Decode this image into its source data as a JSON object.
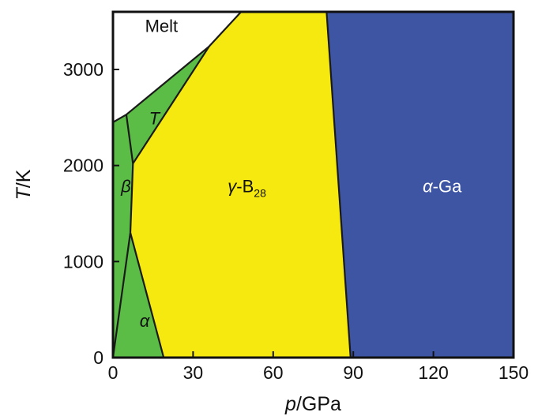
{
  "chart_data": {
    "type": "phase-diagram",
    "title": "",
    "xlabel": {
      "var": "p",
      "unit": "/GPa"
    },
    "ylabel": {
      "var": "T",
      "unit": "/K"
    },
    "xlim": [
      0,
      150
    ],
    "ylim": [
      0,
      3600
    ],
    "xticks": [
      0,
      30,
      60,
      90,
      120,
      150
    ],
    "xtick_labels": [
      "0",
      "30",
      "60",
      "90",
      "120",
      "150"
    ],
    "yticks": [
      0,
      1000,
      2000,
      3000
    ],
    "ytick_labels": [
      "0",
      "1000",
      "2000",
      "3000"
    ],
    "colors": {
      "green": "#5bbd46",
      "yellow": "#f6e90f",
      "blue": "#3d55a3",
      "melt": "#ffffff",
      "line": "#1a1a1a"
    },
    "regions": [
      {
        "id": "melt",
        "parts": [
          {
            "text": "Melt"
          }
        ],
        "label_at": [
          12,
          3390
        ],
        "color": "#ffffff",
        "label_style": "normal",
        "polygon": [
          [
            0,
            3600
          ],
          [
            48,
            3600
          ],
          [
            36,
            3240
          ],
          [
            5,
            2530
          ],
          [
            0,
            2450
          ]
        ]
      },
      {
        "id": "beta",
        "parts": [
          {
            "text": "β",
            "italic": true
          }
        ],
        "label_at": [
          3,
          1720
        ],
        "color": "#5bbd46",
        "label_style": "normal",
        "polygon": [
          [
            0,
            0
          ],
          [
            0,
            2450
          ],
          [
            5,
            2530
          ],
          [
            7.5,
            2020
          ],
          [
            6.5,
            1300
          ]
        ]
      },
      {
        "id": "alpha",
        "parts": [
          {
            "text": "α",
            "italic": true
          }
        ],
        "label_at": [
          10,
          320
        ],
        "color": "#5bbd46",
        "label_style": "normal",
        "polygon": [
          [
            0,
            0
          ],
          [
            6.5,
            1300
          ],
          [
            19,
            0
          ]
        ]
      },
      {
        "id": "T",
        "parts": [
          {
            "text": "T",
            "italic": true
          }
        ],
        "label_at": [
          13.5,
          2430
        ],
        "color": "#5bbd46",
        "label_style": "normal",
        "polygon": [
          [
            5,
            2530
          ],
          [
            36,
            3240
          ],
          [
            7.5,
            2020
          ]
        ]
      },
      {
        "id": "gamma",
        "parts": [
          {
            "text": "γ",
            "italic": true
          },
          {
            "text": "-B"
          },
          {
            "text": "28",
            "sub": true
          }
        ],
        "label_at": [
          43,
          1720
        ],
        "color": "#f6e90f",
        "label_style": "normal",
        "polygon": [
          [
            48,
            3600
          ],
          [
            80,
            3600
          ],
          [
            89,
            0
          ],
          [
            19,
            0
          ],
          [
            6.5,
            1300
          ],
          [
            7.5,
            2020
          ],
          [
            36,
            3240
          ]
        ]
      },
      {
        "id": "alphaGa",
        "parts": [
          {
            "text": "α",
            "italic": true
          },
          {
            "text": "-Ga"
          }
        ],
        "label_at": [
          116,
          1720
        ],
        "color": "#3d55a3",
        "label_style": "light",
        "polygon": [
          [
            80,
            3600
          ],
          [
            150,
            3600
          ],
          [
            150,
            0
          ],
          [
            89,
            0
          ]
        ]
      }
    ],
    "boundaries": [
      [
        [
          0,
          2450
        ],
        [
          5,
          2530
        ],
        [
          36,
          3240
        ],
        [
          48,
          3600
        ]
      ],
      [
        [
          0,
          0
        ],
        [
          6.5,
          1300
        ]
      ],
      [
        [
          19,
          0
        ],
        [
          6.5,
          1300
        ]
      ],
      [
        [
          6.5,
          1300
        ],
        [
          7.5,
          2020
        ],
        [
          5,
          2530
        ]
      ],
      [
        [
          7.5,
          2020
        ],
        [
          36,
          3240
        ]
      ],
      [
        [
          80,
          3600
        ],
        [
          89,
          0
        ]
      ]
    ]
  }
}
